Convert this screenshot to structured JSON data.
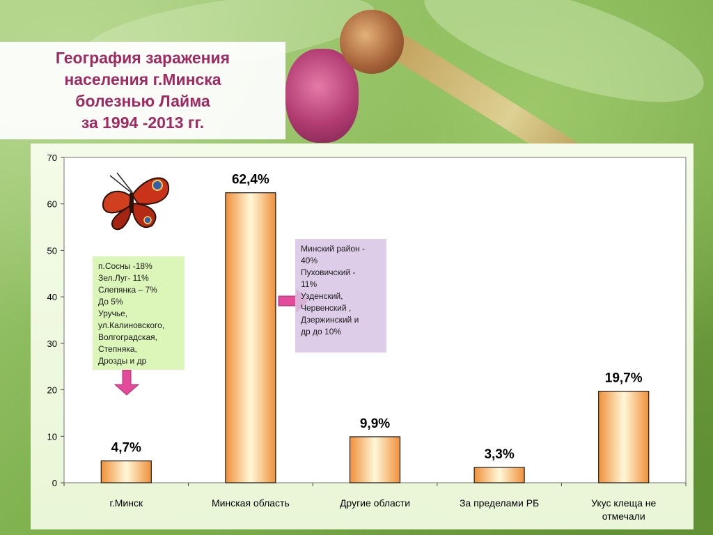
{
  "title_lines": [
    "География заражения",
    "населения г.Минска",
    "болезнью Лайма",
    "за 1994 -2013 гг."
  ],
  "colors": {
    "title": "#a0295f",
    "bar_edge": "#f0903a",
    "bar_center": "#fff8d8",
    "note_green": "#dcf5b8",
    "note_purple": "#d8c4e4",
    "arrow": "#e44a9a"
  },
  "notes": {
    "minsk": [
      "п.Сосны -18%",
      "Зел.Луг- 11%",
      "Слепянка – 7%",
      "До 5%",
      "Уручье,",
      "ул.Калиновского,",
      "Волгоградская,",
      "Степняка,",
      "Дрозды и др"
    ],
    "region": [
      "Минский район -",
      "40%",
      "Пуховичский -",
      "11%",
      "Узденский,",
      "Червенский ,",
      "Дзержинский и",
      "др до 10%"
    ]
  },
  "icons": [
    "butterfly-icon",
    "arrow-down-icon",
    "arrow-right-icon"
  ],
  "chart_data": {
    "type": "bar",
    "categories": [
      "г.Минск",
      "Минская область",
      "Другие области",
      "За пределами РБ",
      "Укус клеща не отмечали"
    ],
    "category_label_lines": [
      [
        "г.Минск"
      ],
      [
        "Минская область"
      ],
      [
        "Другие области"
      ],
      [
        "За пределами РБ"
      ],
      [
        "Укус клеща не",
        "отмечали"
      ]
    ],
    "values": [
      4.7,
      62.4,
      9.9,
      3.3,
      19.7
    ],
    "data_labels": [
      "4,7%",
      "62,4%",
      "9,9%",
      "3,3%",
      "19,7%"
    ],
    "ylim": [
      0,
      70
    ],
    "yticks": [
      0,
      10,
      20,
      30,
      40,
      50,
      60,
      70
    ],
    "grid": false,
    "xlabel": "",
    "ylabel": ""
  }
}
